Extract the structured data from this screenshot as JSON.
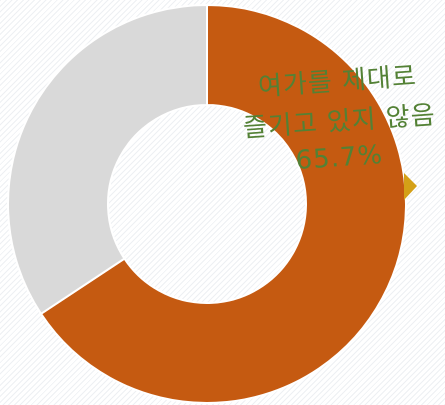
{
  "chart_data": {
    "type": "pie",
    "donut": true,
    "slices": [
      {
        "value": 65.7,
        "color": "#c55a11"
      },
      {
        "value": 34.3,
        "color": "#d9d9d9"
      }
    ],
    "annotation": {
      "lines": [
        "여가를 제대로",
        "즐기고 있지 않음",
        "65.7%"
      ],
      "color": "#538135",
      "marker_color": "#d4a017"
    },
    "title": "",
    "legend": "none"
  }
}
